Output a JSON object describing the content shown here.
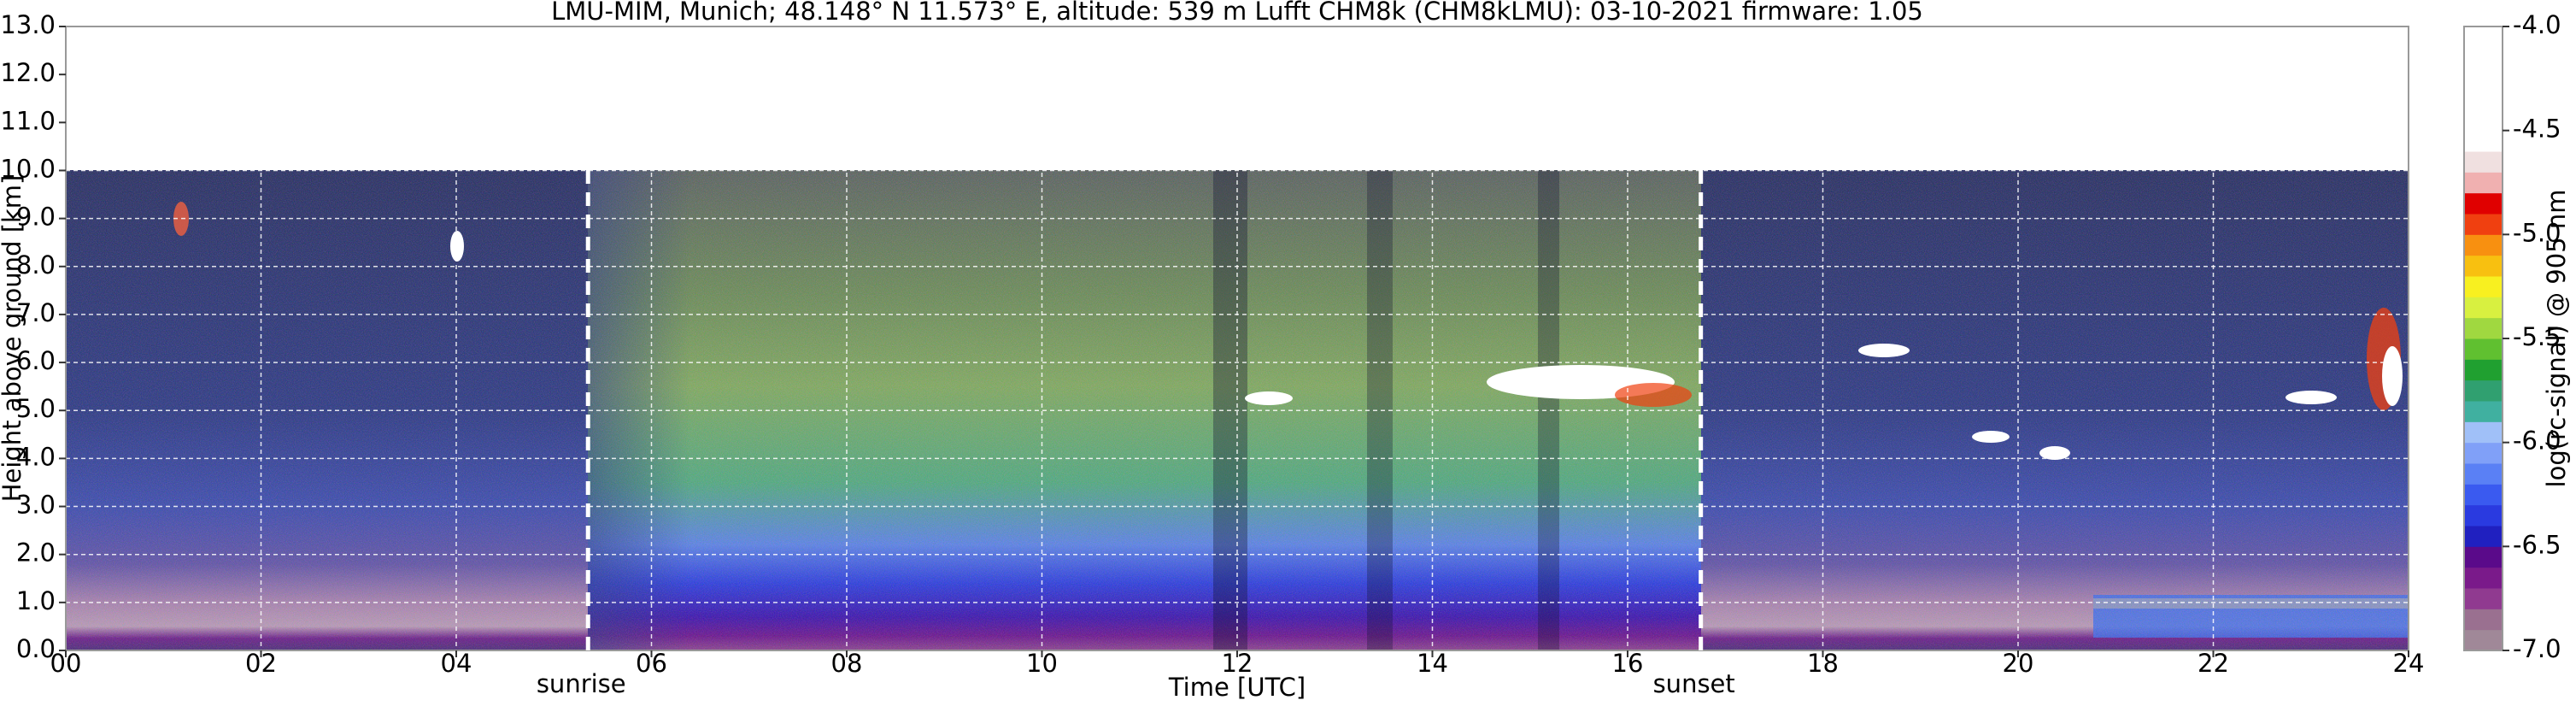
{
  "chart_data": {
    "type": "heatmap",
    "title": "LMU-MIM, Munich; 48.148° N 11.573° E, altitude: 539 m    Lufft CHM8k (CHM8kLMU): 03-10-2021    firmware: 1.05",
    "x_label": "Time [UTC]",
    "y_label": "Height above ground [km]",
    "xlim": [
      0,
      24
    ],
    "xticks": [
      {
        "value": 0,
        "label": "00"
      },
      {
        "value": 2,
        "label": "02"
      },
      {
        "value": 4,
        "label": "04"
      },
      {
        "value": 6,
        "label": "06"
      },
      {
        "value": 8,
        "label": "08"
      },
      {
        "value": 10,
        "label": "10"
      },
      {
        "value": 12,
        "label": "12"
      },
      {
        "value": 14,
        "label": "14"
      },
      {
        "value": 16,
        "label": "16"
      },
      {
        "value": 18,
        "label": "18"
      },
      {
        "value": 20,
        "label": "20"
      },
      {
        "value": 22,
        "label": "22"
      },
      {
        "value": 24,
        "label": "24"
      }
    ],
    "ylim": [
      0,
      13
    ],
    "yticks": [
      {
        "value": 0,
        "label": "0.0"
      },
      {
        "value": 1,
        "label": "1.0"
      },
      {
        "value": 2,
        "label": "2.0"
      },
      {
        "value": 3,
        "label": "3.0"
      },
      {
        "value": 4,
        "label": "4.0"
      },
      {
        "value": 5,
        "label": "5.0"
      },
      {
        "value": 6,
        "label": "6.0"
      },
      {
        "value": 7,
        "label": "7.0"
      },
      {
        "value": 8,
        "label": "8.0"
      },
      {
        "value": 9,
        "label": "9.0"
      },
      {
        "value": 10,
        "label": "10.0"
      },
      {
        "value": 11,
        "label": "11.0"
      },
      {
        "value": 12,
        "label": "12.0"
      },
      {
        "value": 13,
        "label": "13.0"
      }
    ],
    "grid": true,
    "annotations": [
      {
        "text": "sunrise",
        "x": 5.35
      },
      {
        "text": "sunset",
        "x": 16.75
      }
    ],
    "colorbar": {
      "label": "log(rc-signal) @ 905 nm",
      "clim": [
        -7,
        -4
      ],
      "ticks": [
        {
          "value": -4,
          "label": "-4.0"
        },
        -4.5,
        {
          "value": -5,
          "label": "-5.0"
        },
        -5.5,
        {
          "value": -6,
          "label": "-6.0"
        },
        -6.5,
        {
          "value": -7,
          "label": "-7.0"
        }
      ],
      "colors": [
        "#a08898",
        "#9a7090",
        "#903a90",
        "#7a1a8a",
        "#5a0a8a",
        "#2020c0",
        "#2a3ae0",
        "#3a5af0",
        "#5a80f5",
        "#80a0f8",
        "#a0c0f8",
        "#40b0a0",
        "#30a070",
        "#20a030",
        "#60c030",
        "#a0d840",
        "#d8f040",
        "#f8f020",
        "#f8c010",
        "#f89010",
        "#f04010",
        "#e00000",
        "#f0b0b0",
        "#f0e0e0",
        "#ffffff",
        "#ffffff",
        "#ffffff",
        "#ffffff",
        "#ffffff",
        "#ffffff"
      ]
    }
  }
}
